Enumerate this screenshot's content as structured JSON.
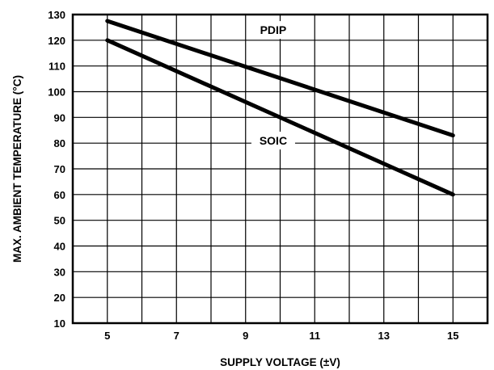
{
  "chart_data": {
    "type": "line",
    "title": "",
    "xlabel": "SUPPLY VOLTAGE (±V)",
    "ylabel": "MAX. AMBIENT TEMPERATURE (°C)",
    "xlim": [
      4,
      16
    ],
    "ylim": [
      10,
      130
    ],
    "x_ticks": [
      5,
      7,
      9,
      11,
      13,
      15
    ],
    "y_ticks": [
      10,
      20,
      30,
      40,
      50,
      60,
      70,
      80,
      90,
      100,
      110,
      120,
      130
    ],
    "x_grid_step": 1,
    "y_grid_step": 10,
    "grid": true,
    "legend": "none",
    "series": [
      {
        "name": "PDIP",
        "x": [
          5,
          15
        ],
        "y": [
          127.5,
          83
        ]
      },
      {
        "name": "SOIC",
        "x": [
          5,
          15
        ],
        "y": [
          120,
          60
        ]
      }
    ],
    "series_labels": [
      {
        "text": "PDIP",
        "series": "PDIP",
        "at_x": 9.8,
        "at_y": 124
      },
      {
        "text": "SOIC",
        "series": "SOIC",
        "at_x": 9.8,
        "at_y": 81
      }
    ],
    "line_color": "#000000"
  }
}
